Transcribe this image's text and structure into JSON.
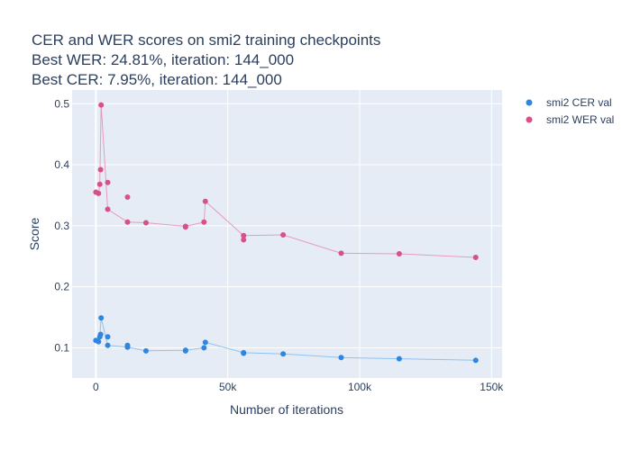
{
  "chart_data": {
    "type": "scatter",
    "title_lines": [
      "CER and WER scores on smi2 training checkpoints",
      "Best WER: 24.81%,  iteration: 144_000",
      "Best CER: 7.95%, iteration: 144_000"
    ],
    "xlabel": "Number of iterations",
    "ylabel": "Score",
    "xlim": [
      -9000,
      154000
    ],
    "ylim": [
      0.0505,
      0.5225
    ],
    "x_ticks": [
      {
        "value": 0,
        "label": "0"
      },
      {
        "value": 50000,
        "label": "50k"
      },
      {
        "value": 100000,
        "label": "100k"
      },
      {
        "value": 150000,
        "label": "150k"
      }
    ],
    "y_ticks": [
      {
        "value": 0.1,
        "label": "0.1"
      },
      {
        "value": 0.2,
        "label": "0.2"
      },
      {
        "value": 0.3,
        "label": "0.3"
      },
      {
        "value": 0.4,
        "label": "0.4"
      },
      {
        "value": 0.5,
        "label": "0.5"
      }
    ],
    "grid": true,
    "legend_position": "top-right",
    "plot_background": "#e5ecf6",
    "series": [
      {
        "name": "smi2 CER val",
        "color": "#2e86de",
        "line_color": "#8fc2ef",
        "x": [
          0,
          1000,
          1500,
          2000,
          4500,
          12000,
          19000,
          34000,
          41000,
          41500,
          56000,
          71000,
          93000,
          115000,
          144000
        ],
        "y": [
          0.112,
          0.11,
          0.118,
          0.149,
          0.104,
          0.101,
          0.095,
          0.096,
          0.1,
          0.109,
          0.092,
          0.09,
          0.084,
          0.082,
          0.0795
        ]
      },
      {
        "name": "smi2 WER val",
        "color": "#d94f8a",
        "line_color": "#e79ac0",
        "x": [
          0,
          1000,
          1500,
          2000,
          4500,
          12000,
          19000,
          34000,
          41000,
          41500,
          56000,
          71000,
          93000,
          115000,
          144000
        ],
        "y": [
          0.355,
          0.353,
          0.368,
          0.498,
          0.327,
          0.306,
          0.305,
          0.299,
          0.306,
          0.34,
          0.284,
          0.285,
          0.255,
          0.254,
          0.2481
        ]
      }
    ],
    "extra_points": [
      {
        "series": 0,
        "x": 1800,
        "y": 0.122
      },
      {
        "series": 0,
        "x": 4500,
        "y": 0.118
      },
      {
        "series": 0,
        "x": 12000,
        "y": 0.104
      },
      {
        "series": 0,
        "x": 34000,
        "y": 0.095
      },
      {
        "series": 0,
        "x": 56000,
        "y": 0.091
      },
      {
        "series": 1,
        "x": 1800,
        "y": 0.392
      },
      {
        "series": 1,
        "x": 4500,
        "y": 0.371
      },
      {
        "series": 1,
        "x": 12000,
        "y": 0.347
      },
      {
        "series": 1,
        "x": 34000,
        "y": 0.298
      },
      {
        "series": 1,
        "x": 56000,
        "y": 0.277
      }
    ]
  }
}
